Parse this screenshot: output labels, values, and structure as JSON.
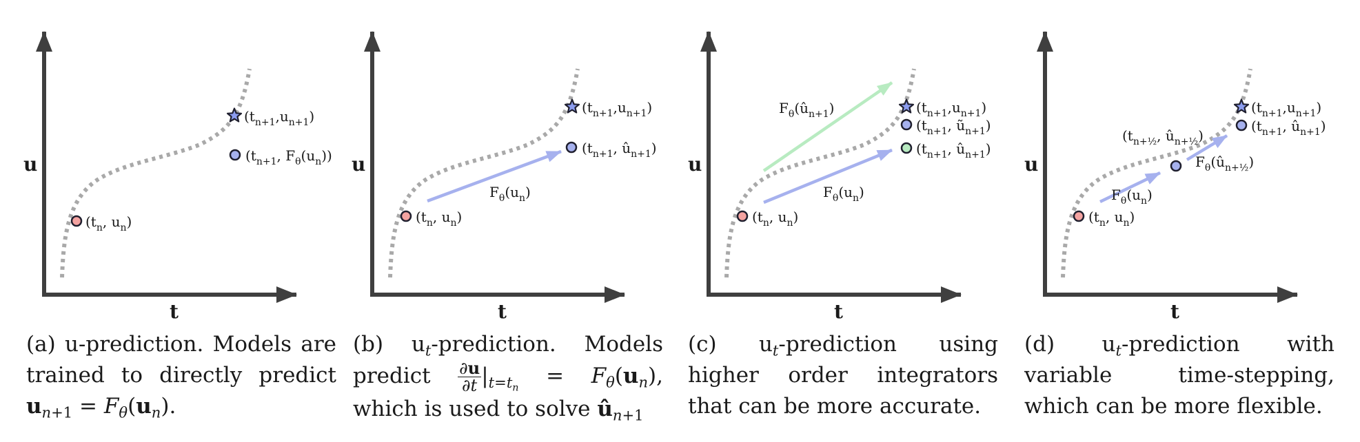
{
  "colors": {
    "axis": "#3f3f3f",
    "curve": "#a9a9a9",
    "start_point": "#f4a3a1",
    "blue": "#a6b1ee",
    "green": "#b8ebc1",
    "star": "#8c9df0"
  },
  "icons": [
    "star-icon",
    "circle-marker"
  ],
  "panels": [
    {
      "axis_y": "u",
      "axis_x": "t",
      "labels": {
        "start": "(t<sub>n</sub>, u<sub>n</sub>)",
        "star": "(t<sub>n+1</sub>,u<sub>n+1</sub>)",
        "pred": "(t<sub>n+1</sub>, F<sub>θ</sub>(u<sub>n</sub>))"
      },
      "caption_html": "(a) u-prediction. Models are trained to directly predict <b>u</b><sub><i>n</i>+1</sub> = <i>F</i><sub><i>θ</i></sub>(<b>u</b><sub><i>n</i></sub>)."
    },
    {
      "axis_y": "u",
      "axis_x": "t",
      "labels": {
        "start": "(t<sub>n</sub>, u<sub>n</sub>)",
        "star": "(t<sub>n+1</sub>,u<sub>n+1</sub>)",
        "pred": "(t<sub>n+1</sub>, û<sub>n+1</sub>)",
        "arrow": "F<sub>θ</sub>(u<sub>n</sub>)"
      },
      "caption_html": "(b) u<sub><i>t</i></sub>-prediction. Models predict <span class=\"frac\"><span class=\"num\">∂<b>u</b></span><span>∂<i>t</i></span></span>|<sub><i>t</i>=<i>t</i><sub><i>n</i></sub></sub> = <i>F</i><sub><i>θ</i></sub>(<b>u</b><sub><i>n</i></sub>), which is used to solve <b>û</b><sub><i>n</i>+1</sub>"
    },
    {
      "axis_y": "u",
      "axis_x": "t",
      "labels": {
        "start": "(t<sub>n</sub>, u<sub>n</sub>)",
        "star": "(t<sub>n+1</sub>,u<sub>n+1</sub>)",
        "tilde": "(t<sub>n+1</sub>, ũ<sub>n+1</sub>)",
        "pred": "(t<sub>n+1</sub>, û<sub>n+1</sub>)",
        "arrow_green": "F<sub>θ</sub>(û<sub>n+1</sub>)",
        "arrow_blue": "F<sub>θ</sub>(u<sub>n</sub>)"
      },
      "caption_html": "(c) u<sub><i>t</i></sub>-prediction using higher order integrators that can be more accurate."
    },
    {
      "axis_y": "u",
      "axis_x": "t",
      "labels": {
        "start": "(t<sub>n</sub>, u<sub>n</sub>)",
        "star": "(t<sub>n+1</sub>,u<sub>n+1</sub>)",
        "pred": "(t<sub>n+1</sub>, û<sub>n+1</sub>)",
        "half": "(t<sub>n+½</sub>, û<sub>n+½</sub>)",
        "arrow1": "F<sub>θ</sub>(u<sub>n</sub>)",
        "arrow2": "F<sub>θ</sub>(û<sub>n+½</sub>)"
      },
      "caption_html": "(d) u<sub><i>t</i></sub>-prediction with variable time-stepping, which can be more flexible."
    }
  ]
}
